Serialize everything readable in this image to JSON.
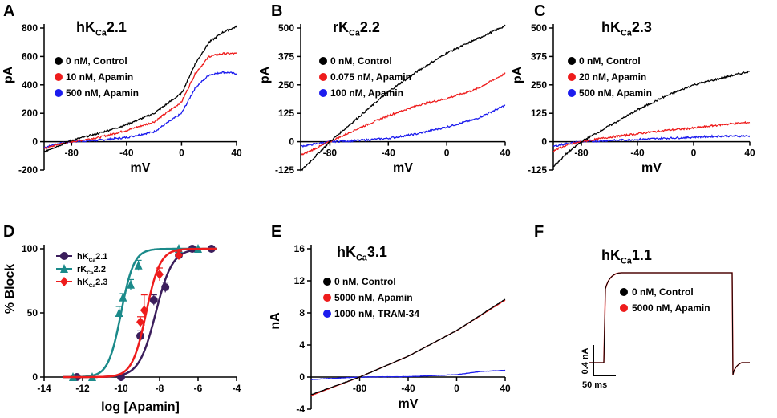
{
  "chart_data": [
    {
      "type": "line",
      "panel_label": "A",
      "title": "hK",
      "title_sub": "Ca",
      "title_suffix": "2.1",
      "xlabel": "mV",
      "ylabel": "pA",
      "xlim": [
        -100,
        40
      ],
      "ylim": [
        -200,
        800
      ],
      "xticks": [
        -80,
        -40,
        0,
        40
      ],
      "yticks": [
        -200,
        0,
        200,
        400,
        600,
        800
      ],
      "series": [
        {
          "name": "0 nM, Control",
          "color": "#000000",
          "x": [
            -100,
            -90,
            -80,
            -60,
            -40,
            -20,
            0,
            10,
            20,
            30,
            40
          ],
          "y": [
            -70,
            -30,
            10,
            60,
            120,
            200,
            340,
            550,
            700,
            770,
            810
          ]
        },
        {
          "name": "10 nM, Apamin",
          "color": "#ee1c1c",
          "x": [
            -100,
            -90,
            -80,
            -60,
            -40,
            -20,
            0,
            10,
            20,
            30,
            40
          ],
          "y": [
            -50,
            -20,
            0,
            30,
            80,
            140,
            280,
            480,
            600,
            620,
            620
          ]
        },
        {
          "name": "500 nM, Apamin",
          "color": "#1c1cee",
          "x": [
            -100,
            -90,
            -80,
            -60,
            -40,
            -20,
            0,
            10,
            20,
            30,
            40
          ],
          "y": [
            -40,
            -15,
            0,
            10,
            30,
            70,
            200,
            380,
            470,
            490,
            480
          ]
        }
      ]
    },
    {
      "type": "line",
      "panel_label": "B",
      "title": "rK",
      "title_sub": "Ca",
      "title_suffix": "2.2",
      "xlabel": "mV",
      "ylabel": "pA",
      "xlim": [
        -100,
        40
      ],
      "ylim": [
        -125,
        500
      ],
      "xticks": [
        -80,
        -40,
        0,
        40
      ],
      "yticks": [
        -125,
        0,
        125,
        250,
        375,
        500
      ],
      "series": [
        {
          "name": "0 nM, Control",
          "color": "#000000",
          "x": [
            -100,
            -80,
            -60,
            -40,
            -20,
            0,
            20,
            40
          ],
          "y": [
            -130,
            0,
            110,
            220,
            310,
            390,
            450,
            510
          ]
        },
        {
          "name": "0.075 nM, Apamin",
          "color": "#ee1c1c",
          "x": [
            -100,
            -80,
            -60,
            -40,
            -20,
            0,
            20,
            40
          ],
          "y": [
            -60,
            0,
            60,
            115,
            160,
            190,
            230,
            300
          ]
        },
        {
          "name": "100 nM, Apamin",
          "color": "#1c1cee",
          "x": [
            -100,
            -80,
            -60,
            -40,
            -20,
            0,
            20,
            40
          ],
          "y": [
            -20,
            0,
            5,
            15,
            35,
            65,
            100,
            160
          ]
        }
      ]
    },
    {
      "type": "line",
      "panel_label": "C",
      "title": "hK",
      "title_sub": "Ca",
      "title_suffix": "2.3",
      "xlabel": "mV",
      "ylabel": "pA",
      "xlim": [
        -100,
        40
      ],
      "ylim": [
        -125,
        500
      ],
      "xticks": [
        -80,
        -40,
        0,
        40
      ],
      "yticks": [
        -125,
        0,
        125,
        250,
        375,
        500
      ],
      "series": [
        {
          "name": "0 nM, Control",
          "color": "#000000",
          "x": [
            -100,
            -90,
            -80,
            -60,
            -40,
            -20,
            0,
            20,
            40
          ],
          "y": [
            -110,
            -50,
            0,
            70,
            140,
            200,
            250,
            280,
            310
          ]
        },
        {
          "name": "20 nM, Apamin",
          "color": "#ee1c1c",
          "x": [
            -100,
            -90,
            -80,
            -60,
            -40,
            -20,
            0,
            20,
            40
          ],
          "y": [
            -40,
            -15,
            0,
            20,
            35,
            50,
            60,
            75,
            85
          ]
        },
        {
          "name": "500 nM, Apamin",
          "color": "#1c1cee",
          "x": [
            -100,
            -90,
            -80,
            -60,
            -40,
            -20,
            0,
            20,
            40
          ],
          "y": [
            -20,
            -8,
            0,
            5,
            10,
            15,
            20,
            25,
            25
          ]
        }
      ]
    },
    {
      "type": "scatter",
      "panel_label": "D",
      "title": "",
      "xlabel": "log [Apamin]",
      "ylabel": "% Block",
      "xlim": [
        -14,
        -4
      ],
      "ylim": [
        0,
        100
      ],
      "xticks": [
        -14,
        -12,
        -10,
        -8,
        -6,
        -4
      ],
      "yticks": [
        0,
        50,
        100
      ],
      "series": [
        {
          "name": "hK",
          "name_sub": "Ca",
          "name_suffix": "2.1",
          "color": "#3b1e5c",
          "marker": "circle",
          "x": [
            -12.3,
            -10,
            -9,
            -8.3,
            -7.7,
            -7,
            -6.3,
            -5.3
          ],
          "y": [
            0,
            0,
            32,
            60,
            70,
            95,
            100,
            100
          ],
          "err": [
            0,
            0,
            4,
            4,
            4,
            2,
            0,
            0
          ],
          "fit_ec50": -8.2,
          "fit_hill": 1.0
        },
        {
          "name": "rK",
          "name_sub": "Ca",
          "name_suffix": "2.2",
          "color": "#1b8a8a",
          "marker": "triangle",
          "x": [
            -12.5,
            -11.5,
            -10.1,
            -9.9,
            -9.5,
            -9.1,
            -7.0,
            -6.0
          ],
          "y": [
            0,
            0,
            50,
            62,
            72,
            87,
            100,
            100
          ],
          "err": [
            0,
            0,
            5,
            3,
            4,
            4,
            0,
            0
          ],
          "fit_ec50": -10.0,
          "fit_hill": 1.3
        },
        {
          "name": "hK",
          "name_sub": "Ca",
          "name_suffix": "2.3",
          "color": "#ee1c1c",
          "marker": "diamond",
          "x": [
            -9.0,
            -8.8,
            -8.0,
            -7.0
          ],
          "y": [
            43,
            52,
            80,
            95
          ],
          "err": [
            4,
            12,
            5,
            3
          ],
          "fit_ec50": -8.7,
          "fit_hill": 1.2
        }
      ]
    },
    {
      "type": "line",
      "panel_label": "E",
      "title": "hK",
      "title_sub": "Ca",
      "title_suffix": "3.1",
      "xlabel": "mV",
      "ylabel": "nA",
      "xlim": [
        -120,
        40
      ],
      "ylim": [
        -4,
        16
      ],
      "xticks": [
        -80,
        -40,
        0,
        40
      ],
      "yticks": [
        -4,
        0,
        4,
        8,
        12,
        16
      ],
      "series": [
        {
          "name": "0 nM, Control",
          "color": "#000000",
          "x": [
            -120,
            -80,
            -40,
            0,
            40
          ],
          "y": [
            -2.2,
            0,
            2.6,
            5.8,
            9.7
          ]
        },
        {
          "name": "5000 nM, Apamin",
          "color": "#ee1c1c",
          "x": [
            -120,
            -80,
            -40,
            0,
            40
          ],
          "y": [
            -2.3,
            0,
            2.6,
            5.8,
            9.6
          ]
        },
        {
          "name": "1000 nM, TRAM-34",
          "color": "#1c1cee",
          "x": [
            -120,
            -80,
            -40,
            0,
            20,
            40
          ],
          "y": [
            -0.3,
            0,
            0.05,
            0.3,
            0.7,
            0.85
          ]
        }
      ]
    },
    {
      "type": "line",
      "panel_label": "F",
      "title": "hK",
      "title_sub": "Ca",
      "title_suffix": "1.1",
      "scale_bar_y": "0.4 nA",
      "scale_bar_x": "50 ms",
      "series": [
        {
          "name": "0 nM, Control",
          "color": "#000000"
        },
        {
          "name": "5000 nM, Apamin",
          "color": "#ee1c1c"
        }
      ]
    }
  ]
}
